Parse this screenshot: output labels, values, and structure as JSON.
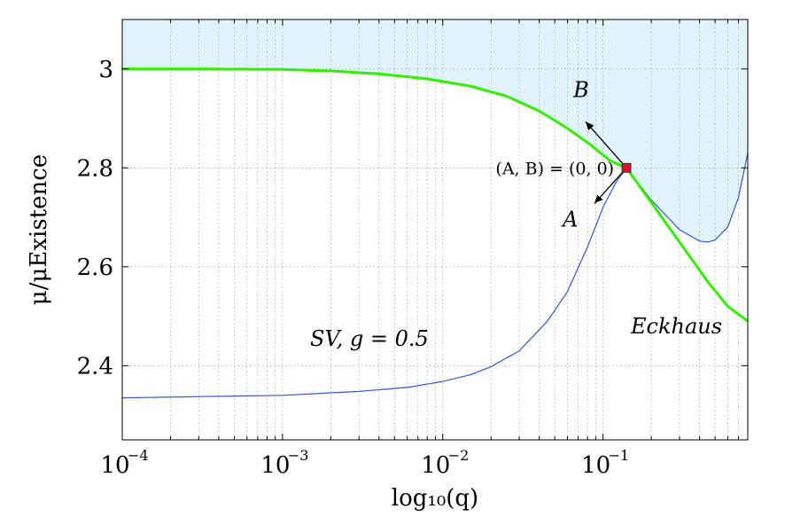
{
  "chart_data": {
    "type": "line",
    "xscale": "log",
    "xlim": [
      0.0001,
      0.8
    ],
    "ylim": [
      2.25,
      3.1
    ],
    "grid": true,
    "xlabel": "log₁₀(q)",
    "ylabel": "μ/μExistence",
    "xticks": [
      {
        "value": 0.0001,
        "base": "10",
        "exp": "−4"
      },
      {
        "value": 0.001,
        "base": "10",
        "exp": "−3"
      },
      {
        "value": 0.01,
        "base": "10",
        "exp": "−2"
      },
      {
        "value": 0.1,
        "base": "10",
        "exp": "−1"
      }
    ],
    "yticks": [
      {
        "value": 2.4,
        "label": "2.4"
      },
      {
        "value": 2.6,
        "label": "2.6"
      },
      {
        "value": 2.8,
        "label": "2.8"
      },
      {
        "value": 3.0,
        "label": "3"
      }
    ],
    "series": [
      {
        "name": "Eckhaus",
        "color": "#33ee00",
        "x": [
          0.0001,
          0.0003,
          0.001,
          0.002,
          0.004,
          0.008,
          0.015,
          0.025,
          0.04,
          0.06,
          0.085,
          0.11,
          0.14,
          0.2,
          0.3,
          0.45,
          0.6,
          0.8
        ],
        "y": [
          3.0,
          3.0,
          2.999,
          2.996,
          2.99,
          2.98,
          2.965,
          2.945,
          2.915,
          2.88,
          2.845,
          2.815,
          2.8,
          2.73,
          2.65,
          2.57,
          2.52,
          2.49
        ]
      },
      {
        "name": "SV, g = 0.5",
        "color": "#3355dd",
        "x": [
          0.0001,
          0.001,
          0.003,
          0.006,
          0.01,
          0.015,
          0.02,
          0.03,
          0.045,
          0.06,
          0.08,
          0.1,
          0.12,
          0.14,
          0.2,
          0.3,
          0.4,
          0.45,
          0.5,
          0.6,
          0.7,
          0.8
        ],
        "y": [
          2.335,
          2.34,
          2.348,
          2.356,
          2.368,
          2.382,
          2.398,
          2.43,
          2.49,
          2.55,
          2.64,
          2.72,
          2.77,
          2.8,
          2.735,
          2.675,
          2.652,
          2.65,
          2.654,
          2.68,
          2.74,
          2.83
        ]
      }
    ],
    "point": {
      "x": 0.14,
      "y": 2.8,
      "color": "#dd1133"
    },
    "annotations": {
      "point_label": "(A, B) = (0, 0)",
      "arrow_b": "B",
      "arrow_a": "A",
      "sv_label": "SV, g = 0.5",
      "eckhaus_label": "Eckhaus"
    },
    "shade_color": "#e1f3fb"
  }
}
